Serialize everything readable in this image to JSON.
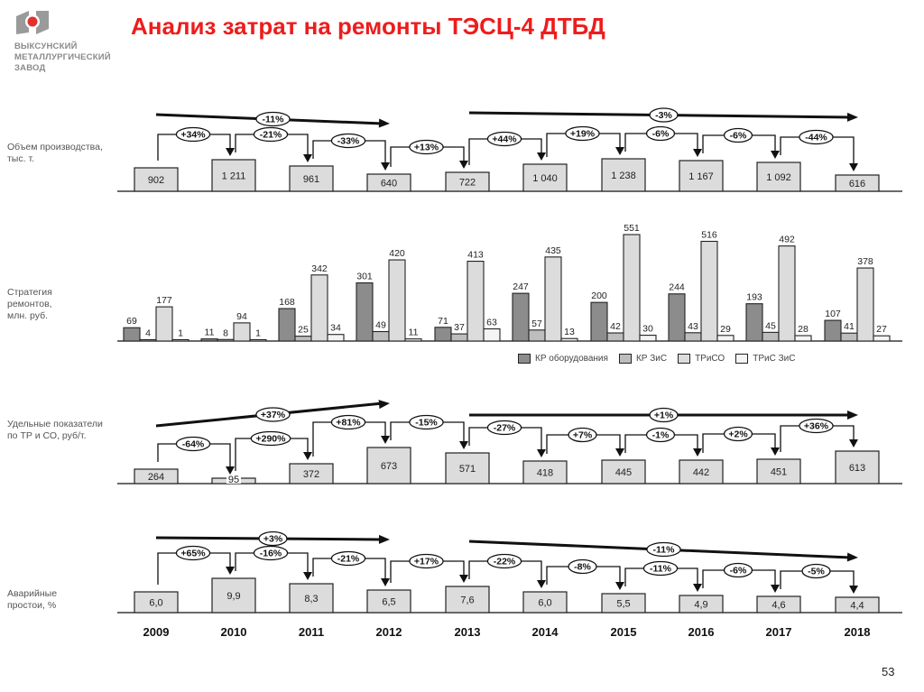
{
  "header": {
    "company_lines": [
      "ВЫКСУНСКИЙ",
      "МЕТАЛЛУРГИЧЕСКИЙ",
      "ЗАВОД"
    ],
    "title": "Анализ затрат на ремонты ТЭСЦ-4 ДТБД",
    "page_number": "53"
  },
  "colors": {
    "title": "#ee1c1c",
    "kr_equipment": "#8c8c8c",
    "kr_zis": "#bdbdbd",
    "trico": "#dcdcdc",
    "tris_zis": "#f4f4f4",
    "box_fill": "#dcdcdc"
  },
  "row_labels": {
    "volume": "Объем производства, тыс. т.",
    "strategy": "Стратегия ремонтов, млн. руб.",
    "specific": "Удельные показатели по  ТР и СО, руб/т.",
    "downtime": "Аварийные простои, %"
  },
  "years": [
    "2009",
    "2010",
    "2011",
    "2012",
    "2013",
    "2014",
    "2015",
    "2016",
    "2017",
    "2018"
  ],
  "legend": [
    "КР оборудования",
    "КР ЗиС",
    "ТРиСО",
    "ТРиС ЗиС"
  ],
  "chart_data": [
    {
      "type": "bar",
      "title": "Объем производства, тыс. т.",
      "categories": [
        "2009",
        "2010",
        "2011",
        "2012",
        "2013",
        "2014",
        "2015",
        "2016",
        "2017",
        "2018"
      ],
      "values": [
        902,
        1211,
        961,
        640,
        722,
        1040,
        1238,
        1167,
        1092,
        616
      ],
      "value_labels": [
        "902",
        "1 211",
        "961",
        "640",
        "722",
        "1 040",
        "1 238",
        "1 167",
        "1 092",
        "616"
      ],
      "yoy_changes": [
        "+34%",
        "-21%",
        "-33%",
        "+13%",
        "+44%",
        "+19%",
        "-6%",
        "-6%",
        "-44%"
      ],
      "trend_arrows": [
        {
          "from": "2009",
          "to": "2012",
          "label": "-11%"
        },
        {
          "from": "2013",
          "to": "2018",
          "label": "-3%"
        }
      ]
    },
    {
      "type": "bar",
      "title": "Стратегия ремонтов, млн. руб.",
      "categories": [
        "2009",
        "2010",
        "2011",
        "2012",
        "2013",
        "2014",
        "2015",
        "2016",
        "2017",
        "2018"
      ],
      "series": [
        {
          "name": "КР оборудования",
          "values": [
            69,
            11,
            168,
            301,
            71,
            247,
            200,
            244,
            193,
            107
          ]
        },
        {
          "name": "КР ЗиС",
          "values": [
            4,
            8,
            25,
            49,
            37,
            57,
            42,
            43,
            45,
            41
          ]
        },
        {
          "name": "ТРиСО",
          "values": [
            177,
            94,
            342,
            420,
            413,
            435,
            551,
            516,
            492,
            378
          ]
        },
        {
          "name": "ТРиС ЗиС",
          "values": [
            1,
            1,
            34,
            11,
            63,
            13,
            30,
            29,
            28,
            27
          ]
        }
      ],
      "legend_position": "bottom-right"
    },
    {
      "type": "bar",
      "title": "Удельные показатели по ТР и СО, руб/т.",
      "categories": [
        "2009",
        "2010",
        "2011",
        "2012",
        "2013",
        "2014",
        "2015",
        "2016",
        "2017",
        "2018"
      ],
      "values": [
        264,
        95,
        372,
        673,
        571,
        418,
        445,
        442,
        451,
        613
      ],
      "value_labels": [
        "264",
        "95",
        "372",
        "673",
        "571",
        "418",
        "445",
        "442",
        "451",
        "613"
      ],
      "yoy_changes": [
        "-64%",
        "+290%",
        "+81%",
        "-15%",
        "-27%",
        "+7%",
        "-1%",
        "+2%",
        "+36%"
      ],
      "trend_arrows": [
        {
          "from": "2009",
          "to": "2012",
          "label": "+37%"
        },
        {
          "from": "2013",
          "to": "2018",
          "label": "+1%"
        }
      ]
    },
    {
      "type": "bar",
      "title": "Аварийные простои, %",
      "categories": [
        "2009",
        "2010",
        "2011",
        "2012",
        "2013",
        "2014",
        "2015",
        "2016",
        "2017",
        "2018"
      ],
      "values": [
        6.0,
        9.9,
        8.3,
        6.5,
        7.6,
        6.0,
        5.5,
        4.9,
        4.6,
        4.4
      ],
      "value_labels": [
        "6,0",
        "9,9",
        "8,3",
        "6,5",
        "7,6",
        "6,0",
        "5,5",
        "4,9",
        "4,6",
        "4,4"
      ],
      "yoy_changes": [
        "+65%",
        "-16%",
        "-21%",
        "+17%",
        "-22%",
        "-8%",
        "-11%",
        "-6%",
        "-5%"
      ],
      "trend_arrows": [
        {
          "from": "2009",
          "to": "2012",
          "label": "+3%"
        },
        {
          "from": "2013",
          "to": "2018",
          "label": "-11%"
        }
      ]
    }
  ]
}
